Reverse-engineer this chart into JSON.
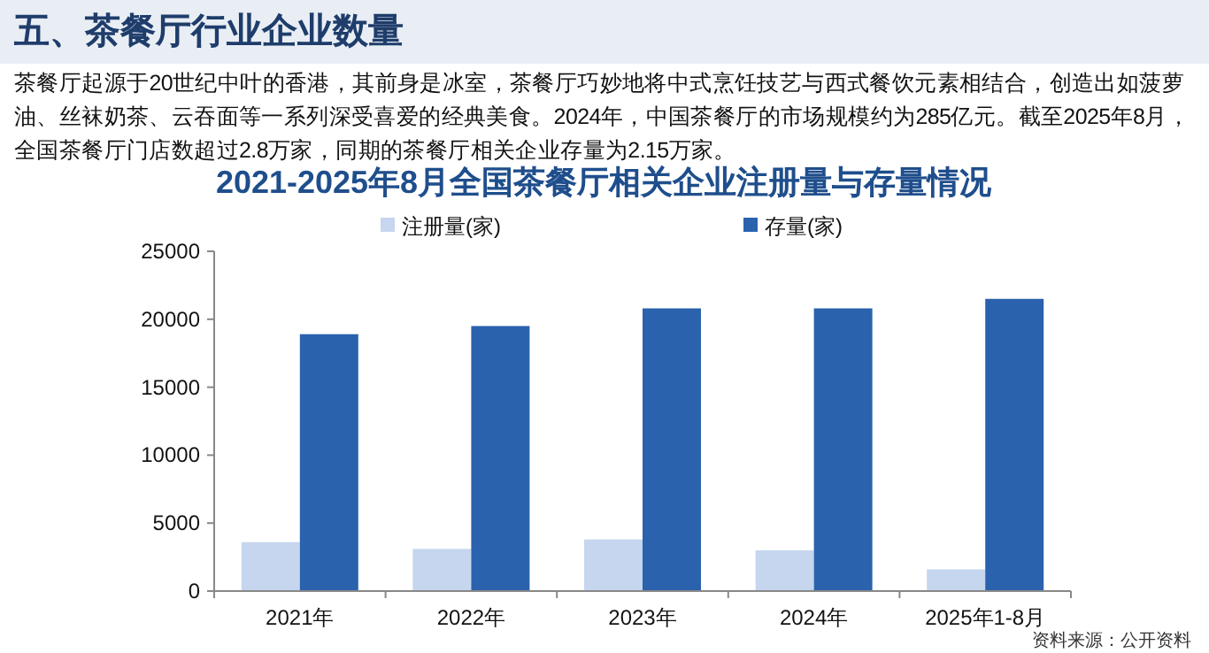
{
  "chart_data": {
    "type": "bar",
    "title": "2021-2025年8月全国茶餐厅相关企业注册量与存量情况",
    "annotations": [
      "五、茶餐厅行业企业数量",
      "茶餐厅起源于20世纪中叶的香港，其前身是冰室，茶餐厅巧妙地将中式烹饪技艺与西式餐饮元素相结合，创造出如菠萝油、丝袜奶茶、云吞面等一系列深受喜爱的经典美食。2024年，中国茶餐厅的市场规模约为285亿元。截至2025年8月，全国茶餐厅门店数超过2.8万家，同期的茶餐厅相关企业存量为2.15万家。",
      "资料来源：公开资料"
    ],
    "categories": [
      "2021年",
      "2022年",
      "2023年",
      "2024年",
      "2025年1-8月"
    ],
    "series": [
      {
        "name": "注册量(家)",
        "color": "#c5d6ee",
        "values": [
          3600,
          3100,
          3800,
          3000,
          1600
        ]
      },
      {
        "name": "存量(家)",
        "color": "#2a62ad",
        "values": [
          18900,
          19500,
          20800,
          20800,
          21500
        ]
      }
    ],
    "ylim": [
      0,
      25000
    ],
    "yticks": [
      0,
      5000,
      10000,
      15000,
      20000,
      25000
    ],
    "legend": "top",
    "grid": false
  }
}
